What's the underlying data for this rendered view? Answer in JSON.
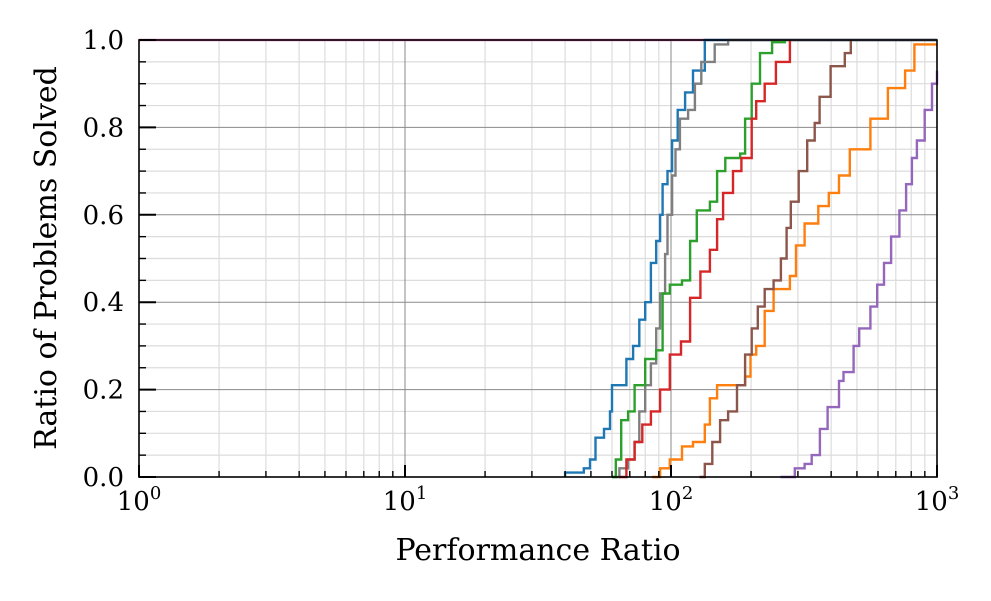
{
  "chart_data": {
    "type": "line",
    "title": "",
    "xlabel": "Performance Ratio",
    "ylabel": "Ratio of Problems Solved",
    "xscale": "log",
    "xlim": [
      1,
      1000
    ],
    "ylim": [
      0.0,
      1.0
    ],
    "grid": true,
    "legend": null,
    "x_ticks": [
      {
        "value": 1,
        "base": "10",
        "exp": "0"
      },
      {
        "value": 10,
        "base": "10",
        "exp": "1"
      },
      {
        "value": 100,
        "base": "10",
        "exp": "2"
      },
      {
        "value": 1000,
        "base": "10",
        "exp": "3"
      }
    ],
    "y_ticks": [
      "0.0",
      "0.2",
      "0.4",
      "0.6",
      "0.8",
      "1.0"
    ],
    "series": [
      {
        "name": "pink",
        "color": "#e377c2",
        "points": [
          [
            1,
            1.0
          ],
          [
            1000,
            1.0
          ]
        ]
      },
      {
        "name": "blue",
        "color": "#1f77b4",
        "points": [
          [
            40,
            0.0
          ],
          [
            40,
            0.01
          ],
          [
            47,
            0.02
          ],
          [
            49.6,
            0.04
          ],
          [
            52,
            0.09
          ],
          [
            56,
            0.11
          ],
          [
            59,
            0.15
          ],
          [
            60,
            0.21
          ],
          [
            65,
            0.21
          ],
          [
            68,
            0.27
          ],
          [
            72,
            0.3
          ],
          [
            76,
            0.36
          ],
          [
            80,
            0.4
          ],
          [
            84,
            0.49
          ],
          [
            88,
            0.54
          ],
          [
            91,
            0.6
          ],
          [
            93,
            0.67
          ],
          [
            97,
            0.7
          ],
          [
            101,
            0.77
          ],
          [
            106,
            0.84
          ],
          [
            113,
            0.88
          ],
          [
            121,
            0.93
          ],
          [
            134,
            1.0
          ],
          [
            1000,
            1.0
          ]
        ]
      },
      {
        "name": "gray",
        "color": "#7f7f7f",
        "points": [
          [
            60,
            0.0
          ],
          [
            64,
            0.02
          ],
          [
            69,
            0.04
          ],
          [
            73,
            0.08
          ],
          [
            76,
            0.15
          ],
          [
            80,
            0.21
          ],
          [
            84,
            0.26
          ],
          [
            88,
            0.34
          ],
          [
            91,
            0.42
          ],
          [
            95,
            0.51
          ],
          [
            97,
            0.6
          ],
          [
            101,
            0.69
          ],
          [
            104,
            0.75
          ],
          [
            108,
            0.82
          ],
          [
            116,
            0.84
          ],
          [
            123,
            0.9
          ],
          [
            130,
            0.95
          ],
          [
            146,
            0.99
          ],
          [
            164,
            1.0
          ],
          [
            1000,
            1.0
          ]
        ]
      },
      {
        "name": "green",
        "color": "#2ca02c",
        "points": [
          [
            60,
            0.0
          ],
          [
            62,
            0.04
          ],
          [
            65,
            0.13
          ],
          [
            69,
            0.15
          ],
          [
            73,
            0.21
          ],
          [
            80,
            0.27
          ],
          [
            88,
            0.29
          ],
          [
            93,
            0.42
          ],
          [
            99,
            0.44
          ],
          [
            110,
            0.45
          ],
          [
            118,
            0.54
          ],
          [
            125,
            0.61
          ],
          [
            140,
            0.63
          ],
          [
            149,
            0.7
          ],
          [
            160,
            0.73
          ],
          [
            182,
            0.74
          ],
          [
            190,
            0.82
          ],
          [
            201,
            0.9
          ],
          [
            216,
            0.97
          ],
          [
            240,
            0.995
          ],
          [
            268,
            1.0
          ]
        ]
      },
      {
        "name": "red",
        "color": "#d62728",
        "points": [
          [
            64,
            0.0
          ],
          [
            68,
            0.04
          ],
          [
            73,
            0.08
          ],
          [
            78,
            0.12
          ],
          [
            84,
            0.15
          ],
          [
            91,
            0.2
          ],
          [
            99,
            0.28
          ],
          [
            109,
            0.31
          ],
          [
            118,
            0.41
          ],
          [
            129,
            0.47
          ],
          [
            140,
            0.52
          ],
          [
            149,
            0.59
          ],
          [
            157,
            0.65
          ],
          [
            171,
            0.7
          ],
          [
            184,
            0.73
          ],
          [
            201,
            0.82
          ],
          [
            209,
            0.86
          ],
          [
            225,
            0.9
          ],
          [
            248,
            0.95
          ],
          [
            280,
            1.0
          ]
        ]
      },
      {
        "name": "orange",
        "color": "#ff7f0e",
        "points": [
          [
            85,
            0.0
          ],
          [
            91,
            0.02
          ],
          [
            99,
            0.04
          ],
          [
            110,
            0.07
          ],
          [
            121,
            0.08
          ],
          [
            134,
            0.12
          ],
          [
            140,
            0.18
          ],
          [
            149,
            0.21
          ],
          [
            182,
            0.21
          ],
          [
            190,
            0.23
          ],
          [
            199,
            0.28
          ],
          [
            209,
            0.3
          ],
          [
            225,
            0.38
          ],
          [
            243,
            0.43
          ],
          [
            280,
            0.46
          ],
          [
            295,
            0.53
          ],
          [
            318,
            0.58
          ],
          [
            358,
            0.62
          ],
          [
            392,
            0.65
          ],
          [
            428,
            0.69
          ],
          [
            470,
            0.75
          ],
          [
            562,
            0.82
          ],
          [
            654,
            0.89
          ],
          [
            759,
            0.93
          ],
          [
            822,
            0.99
          ],
          [
            1000,
            0.99
          ]
        ]
      },
      {
        "name": "brown",
        "color": "#8c564b",
        "points": [
          [
            128,
            0.0
          ],
          [
            134,
            0.03
          ],
          [
            143,
            0.08
          ],
          [
            153,
            0.13
          ],
          [
            164,
            0.15
          ],
          [
            177,
            0.21
          ],
          [
            190,
            0.28
          ],
          [
            201,
            0.34
          ],
          [
            212,
            0.39
          ],
          [
            225,
            0.43
          ],
          [
            243,
            0.45
          ],
          [
            259,
            0.5
          ],
          [
            272,
            0.57
          ],
          [
            282,
            0.63
          ],
          [
            302,
            0.7
          ],
          [
            325,
            0.77
          ],
          [
            347,
            0.81
          ],
          [
            362,
            0.87
          ],
          [
            398,
            0.94
          ],
          [
            450,
            0.97
          ],
          [
            474,
            1.0
          ]
        ]
      },
      {
        "name": "purple",
        "color": "#9467bd",
        "points": [
          [
            258,
            0.0
          ],
          [
            292,
            0.02
          ],
          [
            318,
            0.03
          ],
          [
            338,
            0.05
          ],
          [
            363,
            0.11
          ],
          [
            388,
            0.16
          ],
          [
            428,
            0.22
          ],
          [
            445,
            0.24
          ],
          [
            486,
            0.3
          ],
          [
            510,
            0.34
          ],
          [
            562,
            0.39
          ],
          [
            596,
            0.44
          ],
          [
            632,
            0.49
          ],
          [
            672,
            0.55
          ],
          [
            722,
            0.61
          ],
          [
            765,
            0.67
          ],
          [
            805,
            0.73
          ],
          [
            840,
            0.77
          ],
          [
            899,
            0.84
          ],
          [
            958,
            0.9
          ],
          [
            1000,
            0.93
          ]
        ]
      }
    ]
  },
  "axes": {
    "xlabel": "Performance Ratio",
    "ylabel": "Ratio of Problems Solved"
  }
}
